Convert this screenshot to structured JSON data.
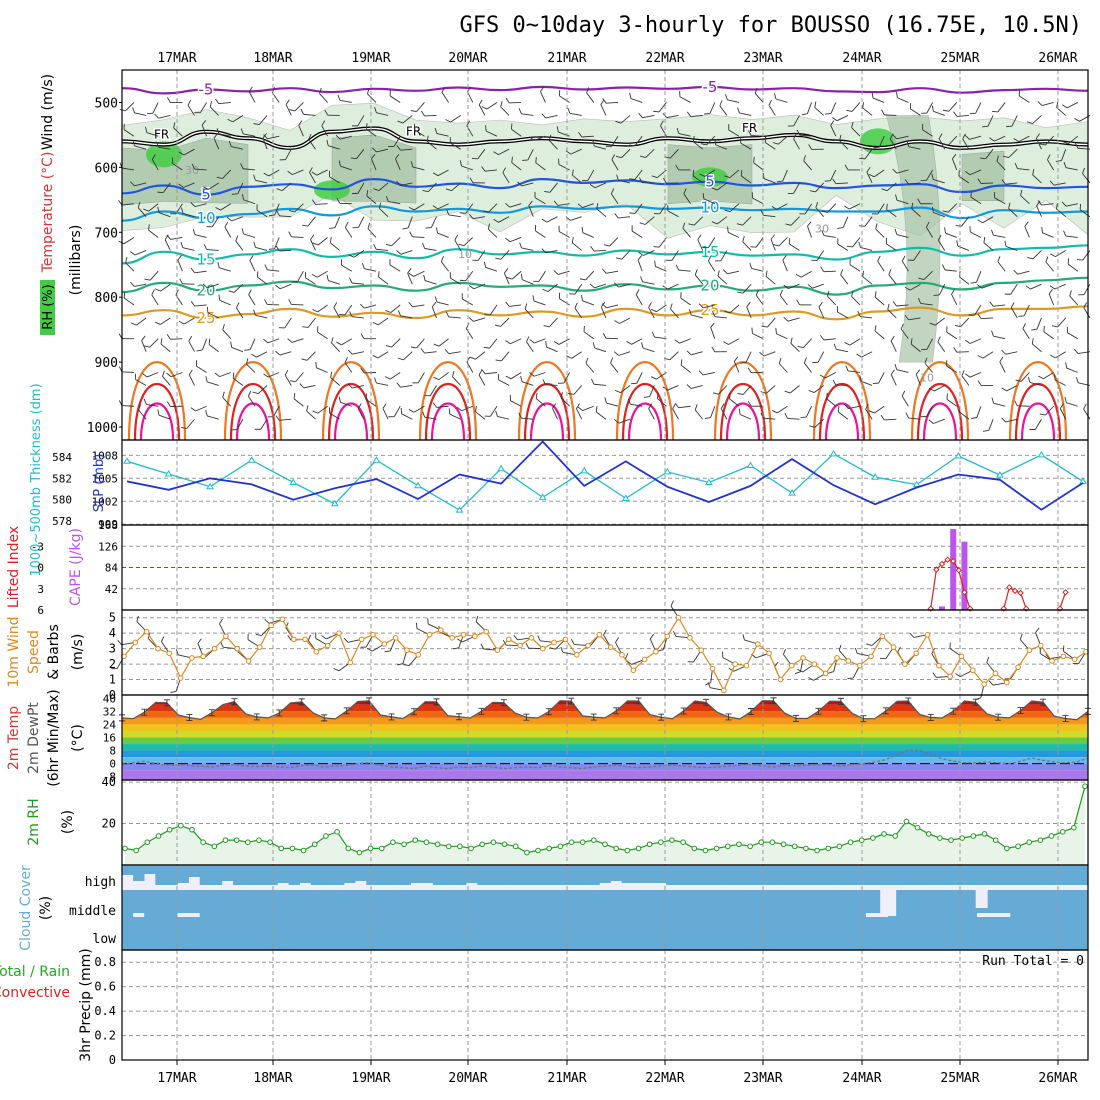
{
  "page": {
    "title": "GFS 0~10day 3-hourly for BOUSSO (16.75E, 10.5N)"
  },
  "colors": {
    "frame": "#000000",
    "grid": "#999999",
    "background": "#ffffff",
    "rh_light": "#ddeedd",
    "rh_mid": "#a8c4a8",
    "rh_dark": "#88aa88",
    "rh_bright": "#44cc44",
    "temp_cold": "#8822aa",
    "temp_5": "#2255dd",
    "temp_10": "#1199dd",
    "temp_15": "#11bbaa",
    "temp_20": "#22aa77",
    "temp_25": "#dd9922",
    "temp_30": "#ee7722",
    "temp_35": "#dd2222",
    "temp_40": "#ee1199",
    "slp": "#2233cc",
    "thickness": "#22bbcc",
    "cape": "#bb55ee",
    "li": "#dd2222",
    "wind": "#dd8822",
    "rh2m": "#229922",
    "rh2m_fill": "#e8f4e8",
    "cloud": "#66aad6",
    "cloud_bg": "#f0eef8",
    "precip_total": "#22aa22",
    "precip_conv": "#dd2222",
    "dewpt": "#777777"
  },
  "chart_data": [
    {
      "id": "upper_air",
      "type": "contour",
      "title": "GFS 0~10day 3-hourly for BOUSSO (16.75E, 10.5N)",
      "ylabel_parts": [
        "Wind (m/s)",
        "Temperature (°C)",
        "RH (%)",
        "(millibars)"
      ],
      "x_labels": [
        "17MAR",
        "18MAR",
        "19MAR",
        "20MAR",
        "21MAR",
        "22MAR",
        "23MAR",
        "24MAR",
        "25MAR",
        "26MAR"
      ],
      "y_ticks": [
        500,
        600,
        700,
        800,
        900,
        1000
      ],
      "y_range": [
        450,
        1020
      ],
      "freezing_label": "FR",
      "freezing_level_mb": [
        560,
        565,
        545,
        555,
        570,
        545,
        540,
        560,
        565,
        560,
        555,
        560,
        565,
        555,
        560,
        555,
        550,
        560,
        570,
        560,
        570,
        565,
        560,
        565
      ],
      "isotherms": [
        {
          "label": "-5",
          "t": -5,
          "p": [
            478,
            486,
            480,
            483,
            478,
            484,
            479,
            482,
            477,
            481,
            476,
            480,
            477,
            479,
            476,
            480,
            478,
            483,
            484,
            478,
            485,
            481,
            479,
            482
          ]
        },
        {
          "label": "5",
          "t": 5,
          "p": [
            640,
            628,
            642,
            630,
            626,
            634,
            618,
            630,
            625,
            632,
            618,
            624,
            620,
            626,
            622,
            628,
            624,
            632,
            628,
            626,
            638,
            628,
            632,
            630
          ]
        },
        {
          "label": "10",
          "t": 10,
          "p": [
            682,
            668,
            678,
            672,
            664,
            674,
            660,
            668,
            664,
            670,
            660,
            664,
            660,
            664,
            662,
            666,
            664,
            668,
            668,
            662,
            678,
            666,
            670,
            668
          ]
        },
        {
          "label": "15",
          "t": 15,
          "p": [
            748,
            730,
            742,
            734,
            726,
            738,
            730,
            740,
            726,
            734,
            730,
            736,
            728,
            734,
            730,
            736,
            734,
            742,
            730,
            724,
            736,
            726,
            724,
            720
          ]
        },
        {
          "label": "20",
          "t": 20,
          "p": [
            792,
            778,
            790,
            782,
            776,
            786,
            782,
            790,
            778,
            784,
            782,
            790,
            780,
            788,
            782,
            790,
            784,
            796,
            782,
            778,
            788,
            778,
            774,
            770
          ]
        },
        {
          "label": "25",
          "t": 25,
          "p": [
            828,
            820,
            832,
            826,
            818,
            830,
            824,
            832,
            820,
            828,
            822,
            830,
            818,
            828,
            820,
            828,
            822,
            834,
            822,
            816,
            828,
            818,
            818,
            814
          ]
        }
      ],
      "contour_labels": [
        "30",
        "10"
      ],
      "rh_label": "RH (%)"
    },
    {
      "id": "slp_thickness",
      "type": "line",
      "ylabel_left": "1000~500mb Thickness (dm)",
      "ylabel_right": "SLP (mb)",
      "left_ticks": [
        "584",
        "582",
        "580",
        "578"
      ],
      "right_ticks": [
        "1008",
        "1005",
        "1002",
        "999"
      ],
      "thickness_range": [
        577.6,
        585.6
      ],
      "slp_range": [
        998.9,
        1010
      ],
      "series": [
        {
          "name": "SLP",
          "axis": "right",
          "values": [
            1004.6,
            1003.5,
            1005.0,
            1004.2,
            1002.2,
            1003.7,
            1004.9,
            1002.3,
            1005.5,
            1004.3,
            1009.8,
            1004.0,
            1007.2,
            1003.9,
            1001.9,
            1004.0,
            1007.5,
            1004.1,
            1001.6,
            1003.8,
            1005.5,
            1004.8,
            1000.9,
            1004.4
          ]
        },
        {
          "name": "1000~500mb Thickness",
          "axis": "left",
          "values": [
            583.6,
            582.4,
            581.2,
            583.7,
            581.6,
            579.6,
            583.7,
            581.3,
            579.0,
            582.9,
            580.2,
            582.7,
            580.1,
            582.6,
            581.6,
            583.2,
            580.6,
            584.3,
            582.1,
            581.4,
            584.1,
            582.3,
            584.2,
            581.7
          ]
        }
      ]
    },
    {
      "id": "cape_li",
      "type": "bar+line",
      "ylabel_left": "Lifted Index",
      "ylabel_right": "CAPE (J/kg)",
      "left_ticks": [
        "-3",
        "0",
        "3",
        "6"
      ],
      "right_ticks": [
        "168",
        "126",
        "84",
        "42"
      ],
      "li_range": [
        -6,
        6
      ],
      "cape_range": [
        0,
        168
      ],
      "cape_bars": [
        {
          "t": 73,
          "value": 7
        },
        {
          "t": 74,
          "value": 160
        },
        {
          "t": 75,
          "value": 135
        }
      ],
      "li_points": [
        {
          "t": 72,
          "value": 5.8
        },
        {
          "t": 72.5,
          "value": 0.3
        },
        {
          "t": 73,
          "value": -0.5
        },
        {
          "t": 73.5,
          "value": -1.1
        },
        {
          "t": 74,
          "value": -0.9
        },
        {
          "t": 74.5,
          "value": 0.4
        },
        {
          "t": 75,
          "value": 3.5
        },
        {
          "t": 75.5,
          "value": 5.8
        },
        {
          "t": 78.5,
          "value": 5.8
        },
        {
          "t": 79,
          "value": 2.8
        },
        {
          "t": 79.5,
          "value": 3.3
        },
        {
          "t": 80,
          "value": 3.6
        },
        {
          "t": 80.5,
          "value": 5.8
        },
        {
          "t": 83.5,
          "value": 5.8
        },
        {
          "t": 84,
          "value": 3.5
        }
      ]
    },
    {
      "id": "wind10m",
      "type": "line",
      "ylabel": "10m Wind Speed & Barbs (m/s)",
      "y_ticks": [
        "5",
        "4",
        "3",
        "2",
        "1",
        "0"
      ],
      "y_range": [
        0,
        5.5
      ],
      "values": [
        2.5,
        3.4,
        4.1,
        3.0,
        2.7,
        1.1,
        2.4,
        2.5,
        3.0,
        3.8,
        3.0,
        2.2,
        3.1,
        4.5,
        4.9,
        3.6,
        3.6,
        2.8,
        3.2,
        4.0,
        2.1,
        3.6,
        3.9,
        3.3,
        3.7,
        2.9,
        2.6,
        3.9,
        4.2,
        3.7,
        3.9,
        3.8,
        4.1,
        2.9,
        3.6,
        3.2,
        3.7,
        3.0,
        3.4,
        3.6,
        2.6,
        3.2,
        3.9,
        3.1,
        2.6,
        1.6,
        2.3,
        2.8,
        3.8,
        5.0,
        3.7,
        2.9,
        1.7,
        0.3,
        2.0,
        1.9,
        3.3,
        2.7,
        1.0,
        1.9,
        2.4,
        2.0,
        1.4,
        2.4,
        2.2,
        1.9,
        2.5,
        3.8,
        3.1,
        2.0,
        2.7,
        3.9,
        1.9,
        1.2,
        2.5,
        1.6,
        0.7,
        1.4,
        0.8,
        1.8,
        2.9,
        3.2,
        2.2,
        2.5,
        2.3,
        2.8
      ]
    },
    {
      "id": "temp2m",
      "type": "area",
      "ylabel_parts": [
        "2m Temp",
        "2m DewPt",
        "(6hr Min/Max)",
        "(°C)"
      ],
      "y_ticks": [
        "40",
        "32",
        "24",
        "16",
        "8",
        "0",
        "-8"
      ],
      "y_range": [
        -10,
        42
      ],
      "temp": [
        28.0,
        27.5,
        31.5,
        37.5,
        37.2,
        29.8,
        28.2,
        27.1,
        31.2,
        36.2,
        37.9,
        30.5,
        28.6,
        28.0,
        31.0,
        37.1,
        37.8,
        31.1,
        28.0,
        27.4,
        32.3,
        38.0,
        38.4,
        29.9,
        28.6,
        27.6,
        31.8,
        37.9,
        37.8,
        29.4,
        28.7,
        27.9,
        32.0,
        37.5,
        37.3,
        30.9,
        28.4,
        27.9,
        31.8,
        38.5,
        38.2,
        29.2,
        28.5,
        28.0,
        32.3,
        38.3,
        38.3,
        30.0,
        28.4,
        27.5,
        32.2,
        38.3,
        37.5,
        31.4,
        28.6,
        27.3,
        31.9,
        38.5,
        38.4,
        30.9,
        27.7,
        27.6,
        32.0,
        38.2,
        38.1,
        30.8,
        27.5,
        27.5,
        32.3,
        38.1,
        38.3,
        30.2,
        28.3,
        27.9,
        32.1,
        38.3,
        37.6,
        30.5,
        28.4,
        28.0,
        32.5,
        38.3,
        37.6,
        29.1,
        27.6,
        26.9,
        32.0
      ],
      "dewpt": [
        -0.5,
        0.5,
        1.5,
        0.0,
        -1.0,
        -0.8,
        -1.2,
        -1.5,
        -2.0,
        -1.0,
        -0.5,
        -1.5,
        -1.8,
        -1.5,
        -2.0,
        -2.5,
        -1.0,
        -1.0,
        -2.0,
        -1.5,
        -1.0,
        0.0,
        0.5,
        -1.0,
        -2.0,
        -2.5,
        -3.0,
        -1.5,
        -2.5,
        -3.0,
        -2.0,
        -2.5,
        -1.5,
        -2.0,
        -3.0,
        -2.5,
        -2.0,
        -2.5,
        -1.0,
        -2.0,
        -2.5,
        -3.0,
        -2.0,
        -1.5,
        -1.0,
        -2.0,
        -2.5,
        -2.0,
        -1.5,
        -1.0,
        -1.5,
        -2.0,
        -2.5,
        -2.0,
        -1.5,
        -1.0,
        -0.5,
        -1.5,
        -2.0,
        -1.0,
        -1.5,
        -1.0,
        -0.5,
        -1.0,
        -1.5,
        -0.5,
        0.0,
        1.0,
        2.5,
        5.5,
        8.5,
        8.0,
        6.0,
        3.0,
        1.5,
        0.5,
        0.5,
        1.0,
        0.5,
        0.0,
        1.5,
        3.5,
        2.0,
        1.0,
        0.5,
        1.0,
        3.5
      ]
    },
    {
      "id": "rh2m",
      "type": "area",
      "ylabel": "2m RH (%)",
      "y_ticks": [
        "40",
        "20"
      ],
      "y_range": [
        0,
        41
      ],
      "values": [
        8,
        7,
        11,
        14,
        17,
        19,
        17,
        11,
        9,
        12,
        12,
        11,
        12,
        11,
        8,
        8,
        7,
        10,
        14,
        16,
        8,
        6,
        8,
        8,
        11,
        10,
        12,
        11,
        10,
        9,
        9,
        8,
        10,
        11,
        10,
        9,
        6,
        7,
        8,
        9,
        11,
        11,
        12,
        10,
        8,
        7,
        8,
        10,
        11,
        12,
        11,
        8,
        7,
        8,
        9,
        10,
        9,
        11,
        11,
        10,
        9,
        8,
        7,
        8,
        9,
        11,
        12,
        13,
        15,
        14,
        21,
        18,
        15,
        13,
        12,
        13,
        14,
        15,
        12,
        8,
        9,
        11,
        12,
        14,
        16,
        18,
        38
      ]
    },
    {
      "id": "cloud",
      "type": "bar",
      "ylabel": "Cloud Cover (%)",
      "levels": [
        "high",
        "middle",
        "low"
      ],
      "high_gaps": [
        0.5,
        0.8,
        0.45,
        1.0,
        1.0,
        0.9,
        0.6,
        1.0,
        1.0,
        0.8,
        1.0,
        1.0,
        1.0,
        1.0,
        0.9,
        1.0,
        0.9,
        1.0,
        1.0,
        1.0,
        0.9,
        0.8,
        1.0,
        1.0,
        1.0,
        1.0,
        0.9,
        0.9,
        1.0,
        1.0,
        1.0,
        0.9,
        1.0,
        1.0,
        1.0,
        1.0,
        1.0,
        1.0,
        1.0,
        1.0,
        1.0,
        1.0,
        1.0,
        0.9,
        0.8,
        0.9,
        0.9,
        0.9,
        0.9,
        1.0,
        1.0,
        1.0,
        1.0,
        1.0,
        1.0,
        1.0,
        1.0,
        1.0,
        1.0,
        1.0,
        1.0,
        1.0,
        1.0,
        1.0,
        1.0,
        1.0,
        1.0,
        1.0,
        1.0,
        1.0,
        1.0,
        1.0,
        1.0,
        1.0,
        1.0,
        1.0,
        1.0,
        1.0,
        1.0,
        1.0,
        1.0,
        1.0,
        1.0,
        1.0,
        1.0,
        1.0,
        1.0
      ]
    },
    {
      "id": "precip",
      "type": "bar",
      "ylabel": "3hr Precip (mm)",
      "legend_left": [
        "Total / Rain",
        "Convective"
      ],
      "y_ticks": [
        "0.8",
        "0.6",
        "0.4",
        "0.2",
        "0"
      ],
      "y_range": [
        0,
        0.9
      ],
      "annotation": "Run Total = 0",
      "values": []
    }
  ]
}
